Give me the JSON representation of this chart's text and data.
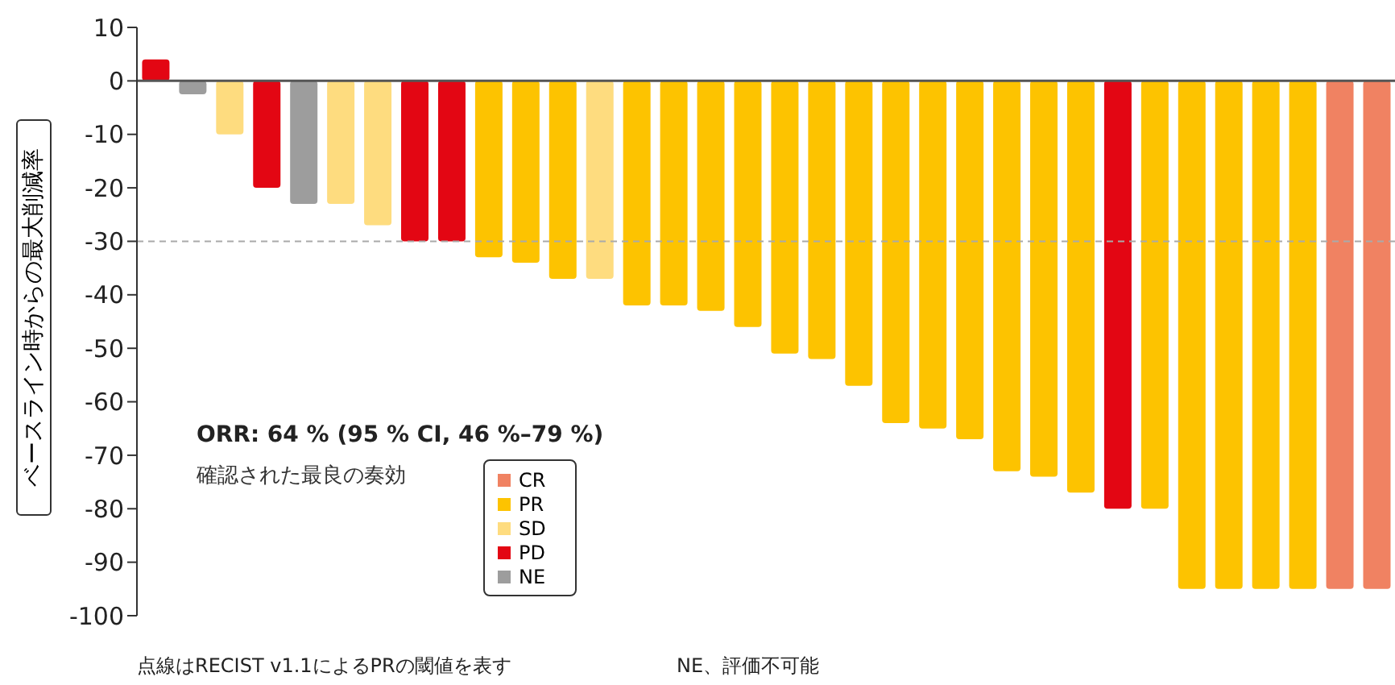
{
  "chart_data": {
    "type": "bar",
    "ylabel": "ベースライン時からの最大削減率",
    "legend_title": "確認された最良の奏効",
    "categories": [
      null,
      null,
      null,
      null,
      null,
      null,
      null,
      null,
      null,
      null,
      null,
      null,
      null,
      null,
      null,
      null,
      null,
      null,
      null,
      null,
      null,
      null,
      null,
      null,
      null,
      null,
      null,
      null,
      null,
      null,
      null,
      null,
      null,
      null
    ],
    "stacked": true,
    "series": [
      {
        "name": "CR",
        "color": "#f08262",
        "values": [
          null,
          null,
          null,
          null,
          null,
          null,
          null,
          null,
          null,
          null,
          null,
          null,
          null,
          null,
          null,
          null,
          null,
          null,
          null,
          null,
          null,
          null,
          null,
          null,
          null,
          null,
          null,
          null,
          null,
          null,
          null,
          null,
          -95,
          -95
        ]
      },
      {
        "name": "PR",
        "color": "#fdc300",
        "values": [
          null,
          null,
          null,
          null,
          null,
          null,
          null,
          null,
          null,
          -33,
          -34,
          -37,
          null,
          -42,
          -42,
          -43,
          -46,
          -51,
          -52,
          -57,
          -64,
          -65,
          -67,
          -73,
          -74,
          -77,
          null,
          -80,
          -95,
          -95,
          -95,
          -95,
          null,
          null
        ]
      },
      {
        "name": "SD",
        "color": "#fedc7f",
        "values": [
          null,
          null,
          -10,
          null,
          null,
          -23,
          -27,
          null,
          null,
          null,
          null,
          null,
          -37,
          null,
          null,
          null,
          null,
          null,
          null,
          null,
          null,
          null,
          null,
          null,
          null,
          null,
          null,
          null,
          null,
          null,
          null,
          null,
          null,
          null
        ]
      },
      {
        "name": "PD",
        "color": "#e30613",
        "values": [
          4,
          null,
          null,
          -20,
          null,
          null,
          null,
          -30,
          -30,
          null,
          null,
          null,
          null,
          null,
          null,
          null,
          null,
          null,
          null,
          null,
          null,
          null,
          null,
          null,
          null,
          null,
          -80,
          null,
          null,
          null,
          null,
          null,
          null,
          null
        ]
      },
      {
        "name": "NE",
        "color": "#9d9d9d",
        "values": [
          null,
          -2.5,
          null,
          null,
          -23,
          null,
          null,
          null,
          null,
          null,
          null,
          null,
          null,
          null,
          null,
          null,
          null,
          null,
          null,
          null,
          null,
          null,
          null,
          null,
          null,
          null,
          null,
          null,
          null,
          null,
          null,
          null,
          null,
          null
        ]
      }
    ],
    "ylim": [
      -100,
      10
    ],
    "yticks": [
      10,
      0,
      -10,
      -20,
      -30,
      -40,
      -50,
      -60,
      -70,
      -80,
      -90,
      -100
    ],
    "ref_lines": [
      {
        "axis": "y",
        "value": 0,
        "color": "#555555",
        "line_style": "solid"
      },
      {
        "axis": "y",
        "value": -30,
        "color": "#aaaaaa",
        "line_style": "dashed"
      }
    ],
    "legend": "bottom left",
    "annotations": [
      "ORR: 64 % (95 % CI, 46 %–79 %)",
      "点線はRECIST v1.1によるPRの閾値を表す",
      "NE、評価不可能"
    ]
  }
}
